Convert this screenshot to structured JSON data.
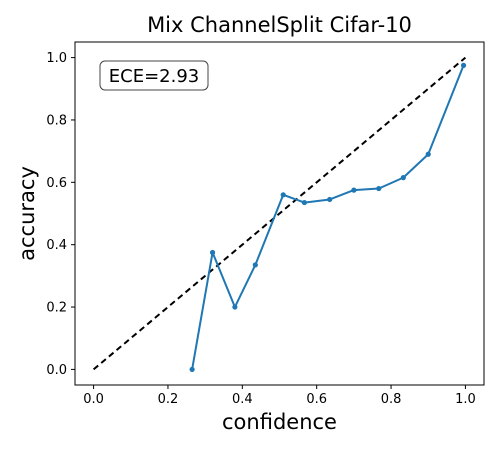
{
  "chart_data": {
    "type": "line",
    "title": "Mix ChannelSplit Cifar-10",
    "xlabel": "confidence",
    "ylabel": "accuracy",
    "xlim": [
      -0.05,
      1.05
    ],
    "ylim": [
      -0.05,
      1.05
    ],
    "xticks": [
      0.0,
      0.2,
      0.4,
      0.6,
      0.8,
      1.0
    ],
    "xtick_labels": [
      "0.0",
      "0.2",
      "0.4",
      "0.6",
      "0.8",
      "1.0"
    ],
    "yticks": [
      0.0,
      0.2,
      0.4,
      0.6,
      0.8,
      1.0
    ],
    "ytick_labels": [
      "0.0",
      "0.2",
      "0.4",
      "0.6",
      "0.8",
      "1.0"
    ],
    "grid": false,
    "annotation": "ECE=2.93",
    "reference_line": {
      "x": [
        0.0,
        1.0
      ],
      "y": [
        0.0,
        1.0
      ],
      "color": "#000000",
      "style": "dashed"
    },
    "series": [
      {
        "color": "#1f77b4",
        "x": [
          0.265,
          0.32,
          0.38,
          0.435,
          0.51,
          0.567,
          0.635,
          0.7,
          0.767,
          0.833,
          0.9,
          0.995
        ],
        "y": [
          0.0,
          0.375,
          0.2,
          0.335,
          0.56,
          0.535,
          0.545,
          0.575,
          0.58,
          0.615,
          0.69,
          0.975
        ]
      }
    ]
  }
}
